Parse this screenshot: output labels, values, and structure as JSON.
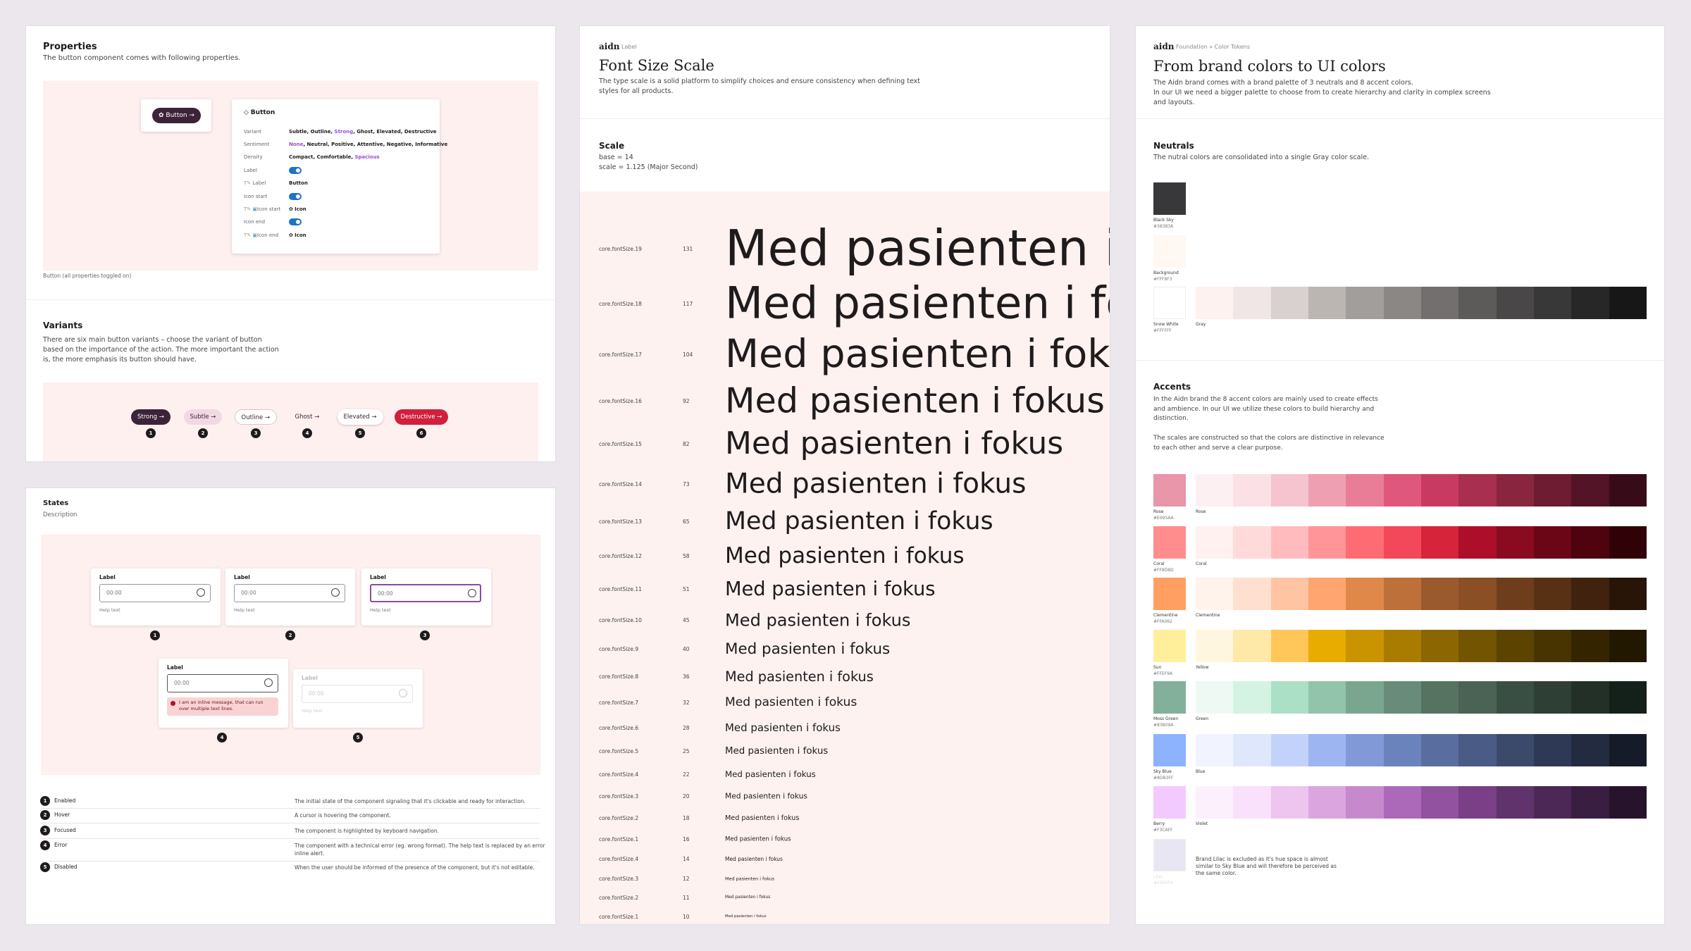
{
  "properties": {
    "title": "Properties",
    "description": "The button component comes with following properties.",
    "preview_button": "Button",
    "card_title": "Button",
    "rows": [
      {
        "label": "Variant",
        "value": [
          {
            "text": "Subtle, Outline, "
          },
          {
            "text": "Strong",
            "color": "#9b4fcf"
          },
          {
            "text": ", Ghost, Elevated, Destructive"
          }
        ]
      },
      {
        "label": "Sentiment",
        "value": [
          {
            "text": "None",
            "color": "#9b4fcf"
          },
          {
            "text": ", Neutral, Positive, Attentive, Negative, Informative"
          }
        ]
      },
      {
        "label": "Density",
        "value": [
          {
            "text": "Compact, Comfortable, "
          },
          {
            "text": "Spacious",
            "color": "#9b4fcf"
          }
        ]
      },
      {
        "label": "Label",
        "toggle": true
      },
      {
        "label": "Label",
        "value": [
          {
            "text": "Button"
          }
        ]
      },
      {
        "label": "Icon start",
        "toggle": true
      },
      {
        "label": "Icon start",
        "value": [
          {
            "text": "Icon"
          }
        ]
      },
      {
        "label": "Icon end",
        "toggle": true
      },
      {
        "label": "Icon end",
        "value": [
          {
            "text": "Icon"
          }
        ]
      }
    ],
    "caption": "Button (all properties toggled on)"
  },
  "variants": {
    "title": "Variants",
    "description": "There are six main button variants – choose the variant of button based on the importance of the action. The more important the action is, the more emphasis its button should have.",
    "buttons": [
      {
        "label": "Strong",
        "number": 1
      },
      {
        "label": "Subtle",
        "number": 2
      },
      {
        "label": "Outline",
        "number": 3
      },
      {
        "label": "Ghost",
        "number": 4
      },
      {
        "label": "Elevated",
        "number": 5
      },
      {
        "label": "Destructive",
        "number": 6
      }
    ]
  },
  "states": {
    "title": "States",
    "subtitle": "Description",
    "fields": [
      {
        "label": "Label",
        "value": "00:00",
        "help": "Help text",
        "number": 1
      },
      {
        "label": "Label",
        "value": "00:00",
        "help": "Help text",
        "number": 2
      },
      {
        "label": "Label",
        "value": "00:00",
        "help": "Help text",
        "number": 3
      },
      {
        "label": "Label",
        "value": "00:00",
        "message": "I am an inline message, that can run over multiple text lines.",
        "number": 4
      },
      {
        "label": "Label",
        "value": "00:00",
        "help": "Help text",
        "number": 5
      }
    ],
    "table": [
      {
        "number": 1,
        "name": "Enabled",
        "description": "The initial state of the component signaling that it's clickable and ready for interaction."
      },
      {
        "number": 2,
        "name": "Hover",
        "description": "A cursor is hovering the component."
      },
      {
        "number": 3,
        "name": "Focused",
        "description": "The component is highlighted by keyboard navigation."
      },
      {
        "number": 4,
        "name": "Error",
        "description": "The component with a technical error (eg. wrong format). The help text is replaced by an error inline alert."
      },
      {
        "number": 5,
        "name": "Disabled",
        "description": "When the user should be informed of the presence of the component, but it's not editable."
      }
    ]
  },
  "font_scale": {
    "brand": "aidn",
    "crumb": "Label",
    "title": "Font Size Scale",
    "description": "The type scale is a solid platform to simplify choices and ensure consistency when defining text styles for all products.",
    "scale_title": "Scale",
    "base": "base = 14",
    "ratio": "scale = 1.125 (Major Second)",
    "sample": "Med pasienten i fokus",
    "rows": [
      {
        "token": "core.fontSize.19",
        "size": 131
      },
      {
        "token": "core.fontSize.18",
        "size": 117
      },
      {
        "token": "core.fontSize.17",
        "size": 104
      },
      {
        "token": "core.fontSize.16",
        "size": 92
      },
      {
        "token": "core.fontSize.15",
        "size": 82
      },
      {
        "token": "core.fontSize.14",
        "size": 73
      },
      {
        "token": "core.fontSize.13",
        "size": 65
      },
      {
        "token": "core.fontSize.12",
        "size": 58
      },
      {
        "token": "core.fontSize.11",
        "size": 51
      },
      {
        "token": "core.fontSize.10",
        "size": 45
      },
      {
        "token": "core.fontSize.9",
        "size": 40
      },
      {
        "token": "core.fontSize.8",
        "size": 36
      },
      {
        "token": "core.fontSize.7",
        "size": 32
      },
      {
        "token": "core.fontSize.6",
        "size": 28
      },
      {
        "token": "core.fontSize.5",
        "size": 25
      },
      {
        "token": "core.fontSize.4",
        "size": 22
      },
      {
        "token": "core.fontSize.3",
        "size": 20
      },
      {
        "token": "core.fontSize.2",
        "size": 18
      },
      {
        "token": "core.fontSize.1",
        "size": 16
      },
      {
        "token": "core.fontSize.4",
        "size": 14
      },
      {
        "token": "core.fontSize.3",
        "size": 12
      },
      {
        "token": "core.fontSize.2",
        "size": 11
      },
      {
        "token": "core.fontSize.1",
        "size": 10
      }
    ]
  },
  "colors": {
    "brand": "aidn",
    "crumb": "Foundation » Color Tokens",
    "title": "From brand colors to UI colors",
    "description": [
      "The Aidn brand comes with a brand palette of 3 neutrals and 8 accent colors.",
      "In our UI we need a bigger palette to choose from to create hierarchy and clarity in complex screens and layouts."
    ],
    "neutrals": {
      "title": "Neutrals",
      "description": "The nutral colors are consolidated into a single Gray color scale.",
      "brand_colors": [
        {
          "name": "Black Sky",
          "hex": "#38383A"
        },
        {
          "name": "Background",
          "hex": "#FFF8F3"
        },
        {
          "name": "Snow White",
          "hex": "#FFFFFF"
        }
      ],
      "scale": {
        "name": "Gray",
        "colors": [
          "#fdf2f0",
          "#efe6e5",
          "#d9d1cf",
          "#bcb6b3",
          "#a29e9b",
          "#8a8785",
          "#726f6e",
          "#5d5a5a",
          "#494747",
          "#383838",
          "#272727",
          "#171717"
        ]
      }
    },
    "accents": {
      "title": "Accents",
      "paragraphs": [
        "In the Aidn brand the 8 accent colors are mainly used to create effects and ambience. In our UI we utilize these colors to build hierarchy and distinction.",
        "The scales are constructed so that the colors are distinctive in relevance to each other and serve a clear purpose."
      ],
      "rows": [
        {
          "brand": {
            "name": "Rose",
            "hex": "#E995AA"
          },
          "scale": {
            "name": "Rose",
            "colors": [
              "#fdf0f2",
              "#fbe0e5",
              "#f5c4cf",
              "#eea0b2",
              "#e97d98",
              "#e0577d",
              "#c93a62",
              "#a82f4f",
              "#8a2540",
              "#6e1c32",
              "#521426",
              "#380b18"
            ]
          }
        },
        {
          "brand": {
            "name": "Coral",
            "hex": "#FF8D8D"
          },
          "scale": {
            "name": "Coral",
            "colors": [
              "#fff1f0",
              "#ffdadb",
              "#ffbbbe",
              "#ff9599",
              "#ff6b73",
              "#f2485a",
              "#d6243b",
              "#ad0f2a",
              "#8a0a20",
              "#6b0617",
              "#4e030f",
              "#300106"
            ]
          }
        },
        {
          "brand": {
            "name": "Clementine",
            "hex": "#FFA062"
          },
          "scale": {
            "name": "Clementine",
            "colors": [
              "#fff3ec",
              "#ffe0d0",
              "#ffc4a2",
              "#ffa56f",
              "#e0874a",
              "#be703a",
              "#9a5a2e",
              "#8a4f25",
              "#6e3e1c",
              "#583014",
              "#40220e",
              "#291508"
            ]
          }
        },
        {
          "brand": {
            "name": "Sun",
            "hex": "#FFEF9A"
          },
          "scale": {
            "name": "Yellow",
            "colors": [
              "#fff6df",
              "#ffe9a8",
              "#ffc75a",
              "#e8ab00",
              "#c99400",
              "#a97c00",
              "#8c6600",
              "#735400",
              "#5c4300",
              "#483400",
              "#342500",
              "#221800"
            ]
          }
        },
        {
          "brand": {
            "name": "Moss Green",
            "hex": "#83B09A"
          },
          "scale": {
            "name": "Green",
            "colors": [
              "#eef9f3",
              "#d5f3e3",
              "#abe0c6",
              "#92c3ab",
              "#7aa690",
              "#688c79",
              "#567362",
              "#4a6354",
              "#3a4f43",
              "#2e3f35",
              "#223028",
              "#14201a"
            ]
          }
        },
        {
          "brand": {
            "name": "Sky Blue",
            "hex": "#8DB3FF"
          },
          "scale": {
            "name": "Blue",
            "colors": [
              "#f1f4fe",
              "#dfe7fc",
              "#c2d2fb",
              "#9db5f0",
              "#8199d6",
              "#6b83bd",
              "#596e9f",
              "#4a5b85",
              "#3b4a6b",
              "#2e3a55",
              "#222b40",
              "#151b29"
            ]
          }
        },
        {
          "brand": {
            "name": "Berry",
            "hex": "#F3CAFF"
          },
          "scale": {
            "name": "Violet",
            "colors": [
              "#fcf0fd",
              "#f9e1fb",
              "#edc5ef",
              "#dba6df",
              "#c689cc",
              "#ad69b9",
              "#92529f",
              "#7a3f87",
              "#61336c",
              "#4c2856",
              "#3a1e42",
              "#28132d"
            ]
          }
        }
      ],
      "excluded": {
        "name": "Lilac",
        "hex": "#E9E6F4",
        "note": "Brand Lilac is excluded as it's hue space is almost similar to Sky Blue and will therefore be perceived as the same color."
      }
    }
  }
}
